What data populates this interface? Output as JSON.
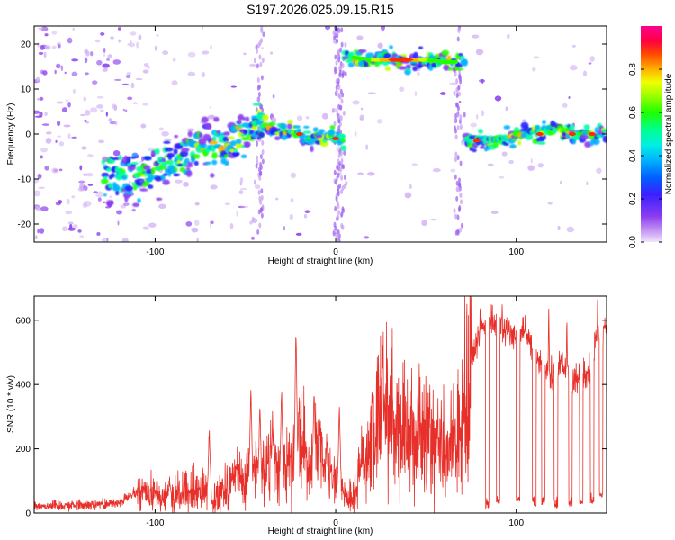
{
  "title": "S197.2026.025.09.15.R15",
  "chart_data": [
    {
      "type": "heatmap",
      "name": "spectrogram",
      "xlabel": "Height of straight line (km)",
      "ylabel": "Frequency (Hz)",
      "xlim": [
        -167,
        150
      ],
      "ylim": [
        -24,
        24
      ],
      "xticks": [
        -100,
        0,
        100
      ],
      "yticks": [
        -20,
        -10,
        0,
        10,
        20
      ],
      "colorbar": {
        "label": "Normalized spectral amplitude",
        "range": [
          0,
          1
        ],
        "ticks": [
          0.0,
          0.2,
          0.4,
          0.6,
          0.8
        ],
        "tick_labels": [
          "0.0",
          "0.2",
          "0.4",
          "0.6",
          "0.8"
        ],
        "colors": [
          "#d8b8f2",
          "#8a3cf0",
          "#2020ff",
          "#00b4ff",
          "#00ffa0",
          "#20ff00",
          "#c8ff00",
          "#ffb000",
          "#ff3000",
          "#ff0080"
        ]
      },
      "ridge": [
        {
          "x": -120,
          "f": -9
        },
        {
          "x": -110,
          "f": -10
        },
        {
          "x": -100,
          "f": -8
        },
        {
          "x": -90,
          "f": -6
        },
        {
          "x": -80,
          "f": -4
        },
        {
          "x": -70,
          "f": -2
        },
        {
          "x": -60,
          "f": -3
        },
        {
          "x": -50,
          "f": 0
        },
        {
          "x": -40,
          "f": 2
        },
        {
          "x": -30,
          "f": 1
        },
        {
          "x": -20,
          "f": 0
        },
        {
          "x": -10,
          "f": -1
        },
        {
          "x": 0,
          "f": -1
        },
        {
          "x": 10,
          "f": 17
        },
        {
          "x": 20,
          "f": 16.5
        },
        {
          "x": 30,
          "f": 16.5
        },
        {
          "x": 40,
          "f": 16.5
        },
        {
          "x": 50,
          "f": 16.5
        },
        {
          "x": 60,
          "f": 16
        },
        {
          "x": 67,
          "f": 16
        },
        {
          "x": 75,
          "f": -1.5
        },
        {
          "x": 85,
          "f": -1.5
        },
        {
          "x": 95,
          "f": -1
        },
        {
          "x": 105,
          "f": 0
        },
        {
          "x": 115,
          "f": 0
        },
        {
          "x": 120,
          "f": 1.5
        },
        {
          "x": 130,
          "f": 0
        },
        {
          "x": 140,
          "f": 0
        },
        {
          "x": 150,
          "f": 0
        }
      ]
    },
    {
      "type": "line",
      "name": "snr",
      "xlabel": "Height of straight line (km)",
      "ylabel": "SNR (10 * v/v)",
      "xlim": [
        -167,
        150
      ],
      "ylim": [
        0,
        675
      ],
      "xticks": [
        -100,
        0,
        100
      ],
      "yticks": [
        0,
        200,
        400,
        600
      ],
      "color": "#e8302a",
      "series": [
        {
          "name": "SNR",
          "x": [
            -167,
            -160,
            -150,
            -140,
            -130,
            -120,
            -110,
            -100,
            -95,
            -90,
            -85,
            -80,
            -75,
            -70,
            -65,
            -60,
            -55,
            -50,
            -45,
            -40,
            -35,
            -30,
            -25,
            -20,
            -15,
            -10,
            -5,
            0,
            5,
            10,
            15,
            20,
            25,
            30,
            35,
            40,
            45,
            50,
            55,
            60,
            65,
            70,
            75,
            80,
            85,
            90,
            95,
            100,
            105,
            110,
            115,
            120,
            125,
            130,
            135,
            140,
            145,
            150
          ],
          "y": [
            25,
            22,
            25,
            25,
            28,
            32,
            65,
            55,
            50,
            55,
            60,
            65,
            70,
            45,
            60,
            90,
            110,
            100,
            130,
            150,
            155,
            120,
            160,
            230,
            150,
            200,
            120,
            90,
            60,
            45,
            170,
            220,
            300,
            330,
            270,
            250,
            240,
            260,
            220,
            200,
            200,
            280,
            480,
            560,
            600,
            580,
            570,
            550,
            560,
            500,
            440,
            430,
            480,
            400,
            430,
            440,
            550,
            580
          ]
        }
      ],
      "spikes": [
        {
          "x": -92,
          "y": 115
        },
        {
          "x": -70,
          "y": 260
        },
        {
          "x": -55,
          "y": 150
        },
        {
          "x": -47,
          "y": 390
        },
        {
          "x": -42,
          "y": 335
        },
        {
          "x": -35,
          "y": 300
        },
        {
          "x": -30,
          "y": 380
        },
        {
          "x": -22,
          "y": 590
        },
        {
          "x": -12,
          "y": 390
        },
        {
          "x": -5,
          "y": 230
        },
        {
          "x": 2,
          "y": 330
        },
        {
          "x": 14,
          "y": 175
        },
        {
          "x": 26,
          "y": 535
        },
        {
          "x": 80,
          "y": 675
        },
        {
          "x": 105,
          "y": 640
        },
        {
          "x": 118,
          "y": 645
        },
        {
          "x": 128,
          "y": 610
        },
        {
          "x": 145,
          "y": 660
        }
      ],
      "dips": [
        {
          "x": 84,
          "y": 15
        },
        {
          "x": 90,
          "y": 30
        },
        {
          "x": 101,
          "y": 35
        },
        {
          "x": 110,
          "y": 20
        },
        {
          "x": 115,
          "y": 25
        },
        {
          "x": 122,
          "y": 15
        },
        {
          "x": 130,
          "y": 20
        },
        {
          "x": 136,
          "y": 25
        },
        {
          "x": 142,
          "y": 30
        },
        {
          "x": 147,
          "y": 50
        }
      ]
    }
  ]
}
